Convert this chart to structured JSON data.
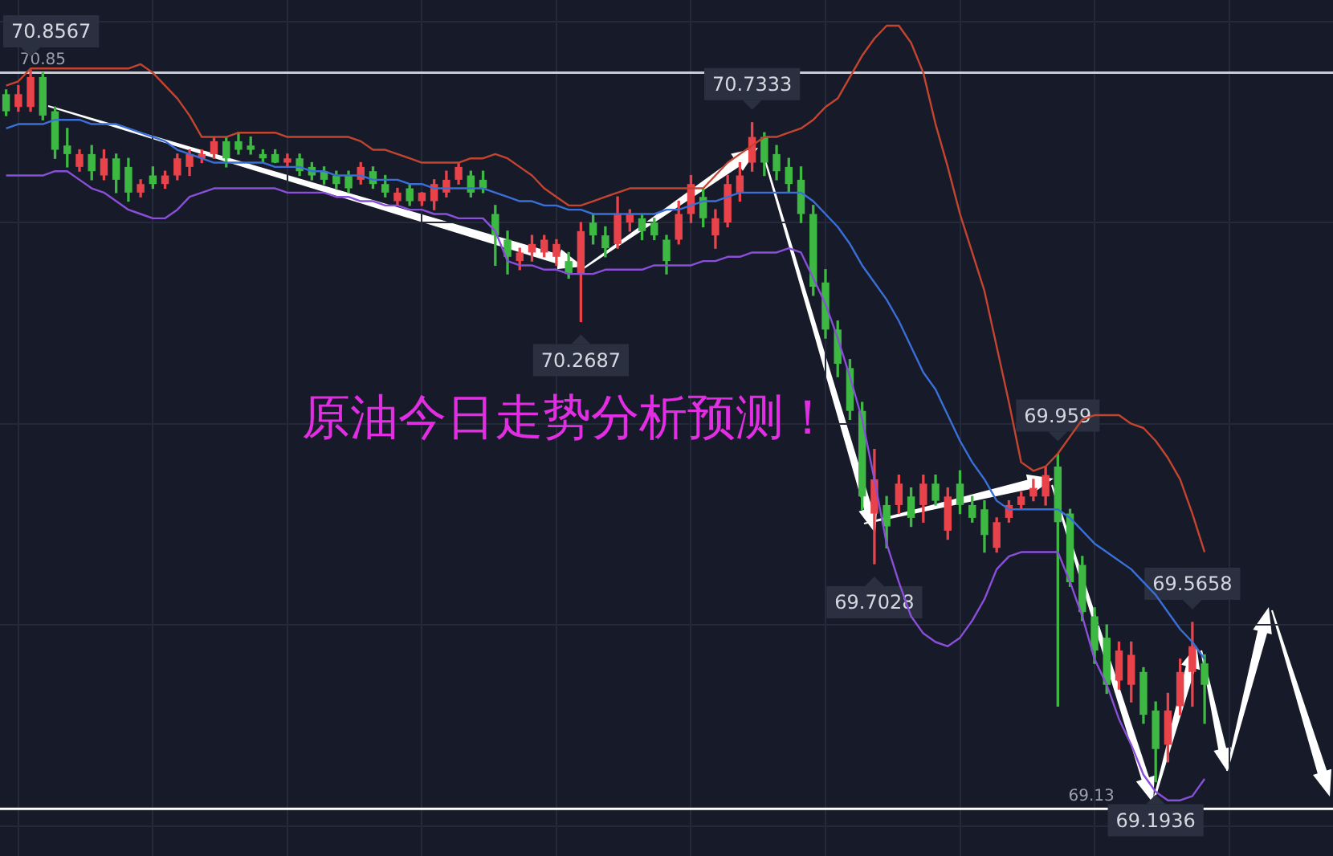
{
  "chart_data": {
    "type": "candlestick",
    "categories": [
      null,
      null,
      null,
      null,
      null,
      null,
      null,
      null,
      null,
      null,
      null,
      null,
      null,
      null,
      null,
      null,
      null,
      null,
      null,
      null,
      null,
      null,
      null,
      null,
      null,
      null,
      null,
      null,
      null,
      null,
      null,
      null,
      null,
      null,
      null,
      null,
      null,
      null,
      null,
      null,
      null,
      null,
      null,
      null,
      null,
      null,
      null,
      null,
      null,
      null,
      null,
      null,
      null,
      null,
      null,
      null,
      null,
      null,
      null,
      null,
      null,
      null,
      null,
      null,
      null,
      null,
      null,
      null,
      null,
      null,
      null,
      null,
      null,
      null,
      null,
      null,
      null,
      null,
      null,
      null,
      null,
      null,
      null,
      null,
      null,
      null,
      null,
      null,
      null,
      null,
      null,
      null,
      null,
      null,
      null,
      null,
      null,
      null,
      null,
      null,
      null,
      null,
      null,
      null,
      null,
      null,
      null,
      null,
      null
    ],
    "ohlc": [
      [
        70.8,
        70.81,
        70.75,
        70.76
      ],
      [
        70.77,
        70.82,
        70.76,
        70.8
      ],
      [
        70.77,
        70.8567,
        70.76,
        70.84
      ],
      [
        70.84,
        70.85,
        70.74,
        70.75
      ],
      [
        70.76,
        70.77,
        70.65,
        70.67
      ],
      [
        70.68,
        70.72,
        70.63,
        70.66
      ],
      [
        70.63,
        70.67,
        70.62,
        70.66
      ],
      [
        70.66,
        70.68,
        70.6,
        70.62
      ],
      [
        70.61,
        70.67,
        70.6,
        70.65
      ],
      [
        70.65,
        70.66,
        70.57,
        70.6
      ],
      [
        70.63,
        70.65,
        70.55,
        70.57
      ],
      [
        70.57,
        70.6,
        70.56,
        70.59
      ],
      [
        70.61,
        70.63,
        70.58,
        70.59
      ],
      [
        70.59,
        70.62,
        70.58,
        70.61
      ],
      [
        70.61,
        70.66,
        70.6,
        70.65
      ],
      [
        70.63,
        70.67,
        70.61,
        70.66
      ],
      [
        70.65,
        70.67,
        70.64,
        70.66
      ],
      [
        70.66,
        70.7,
        70.65,
        70.69
      ],
      [
        70.69,
        70.7,
        70.63,
        70.65
      ],
      [
        70.69,
        70.71,
        70.66,
        70.67
      ],
      [
        70.68,
        70.7,
        70.66,
        70.67
      ],
      [
        70.66,
        70.67,
        70.64,
        70.65
      ],
      [
        70.66,
        70.67,
        70.64,
        70.64
      ],
      [
        70.64,
        70.66,
        70.63,
        70.65
      ],
      [
        70.65,
        70.66,
        70.61,
        70.62
      ],
      [
        70.63,
        70.64,
        70.6,
        70.61
      ],
      [
        70.62,
        70.63,
        70.59,
        70.6
      ],
      [
        70.61,
        70.62,
        70.58,
        70.59
      ],
      [
        70.61,
        70.62,
        70.57,
        70.58
      ],
      [
        70.6,
        70.64,
        70.59,
        70.63
      ],
      [
        70.62,
        70.63,
        70.58,
        70.59
      ],
      [
        70.59,
        70.61,
        70.56,
        70.57
      ],
      [
        70.55,
        70.58,
        70.54,
        70.57
      ],
      [
        70.58,
        70.59,
        70.54,
        70.55
      ],
      [
        70.55,
        70.57,
        70.54,
        70.57
      ],
      [
        70.55,
        70.6,
        70.53,
        70.59
      ],
      [
        70.57,
        70.62,
        70.56,
        70.6
      ],
      [
        70.6,
        70.64,
        70.59,
        70.63
      ],
      [
        70.61,
        70.62,
        70.56,
        70.57
      ],
      [
        70.6,
        70.62,
        70.57,
        70.58
      ],
      [
        70.52,
        70.54,
        70.4,
        70.47
      ],
      [
        70.46,
        70.48,
        70.38,
        70.42
      ],
      [
        70.41,
        70.44,
        70.39,
        70.43
      ],
      [
        70.43,
        70.47,
        70.41,
        70.45
      ],
      [
        70.43,
        70.47,
        70.42,
        70.46
      ],
      [
        70.42,
        70.46,
        70.4,
        70.45
      ],
      [
        70.41,
        70.43,
        70.37,
        70.38
      ],
      [
        70.38,
        70.5,
        70.2687,
        70.48
      ],
      [
        70.5,
        70.52,
        70.45,
        70.47
      ],
      [
        70.47,
        70.49,
        70.42,
        70.44
      ],
      [
        70.45,
        70.56,
        70.44,
        70.52
      ],
      [
        70.5,
        70.53,
        70.48,
        70.52
      ],
      [
        70.51,
        70.52,
        70.46,
        70.48
      ],
      [
        70.5,
        70.51,
        70.46,
        70.47
      ],
      [
        70.46,
        70.47,
        70.38,
        70.41
      ],
      [
        70.46,
        70.55,
        70.45,
        70.52
      ],
      [
        70.52,
        70.61,
        70.5,
        70.59
      ],
      [
        70.56,
        70.58,
        70.49,
        70.51
      ],
      [
        70.47,
        70.53,
        70.44,
        70.51
      ],
      [
        70.5,
        70.61,
        70.49,
        70.59
      ],
      [
        70.57,
        70.64,
        70.55,
        70.61
      ],
      [
        70.64,
        70.7333,
        70.62,
        70.7
      ],
      [
        70.7,
        70.71,
        70.61,
        70.64
      ],
      [
        70.66,
        70.68,
        70.6,
        70.62
      ],
      [
        70.63,
        70.65,
        70.57,
        70.59
      ],
      [
        70.6,
        70.63,
        70.5,
        70.52
      ],
      [
        70.52,
        70.54,
        70.33,
        70.35
      ],
      [
        70.36,
        70.39,
        70.23,
        70.25
      ],
      [
        70.25,
        70.27,
        70.14,
        70.17
      ],
      [
        70.16,
        70.18,
        70.04,
        70.06
      ],
      [
        70.06,
        70.08,
        69.83,
        69.86
      ],
      [
        69.82,
        69.97,
        69.7028,
        69.9
      ],
      [
        69.84,
        69.86,
        69.74,
        69.79
      ],
      [
        69.84,
        69.91,
        69.82,
        69.89
      ],
      [
        69.86,
        69.88,
        69.79,
        69.81
      ],
      [
        69.84,
        69.91,
        69.8,
        69.89
      ],
      [
        69.89,
        69.91,
        69.84,
        69.85
      ],
      [
        69.78,
        69.88,
        69.76,
        69.86
      ],
      [
        69.89,
        69.92,
        69.82,
        69.84
      ],
      [
        69.84,
        69.86,
        69.8,
        69.81
      ],
      [
        69.83,
        69.85,
        69.73,
        69.77
      ],
      [
        69.74,
        69.81,
        69.73,
        69.8
      ],
      [
        69.81,
        69.85,
        69.8,
        69.84
      ],
      [
        69.84,
        69.87,
        69.83,
        69.86
      ],
      [
        69.86,
        69.9,
        69.85,
        69.88
      ],
      [
        69.86,
        69.93,
        69.84,
        69.91
      ],
      [
        69.93,
        69.959,
        69.37,
        69.8
      ],
      [
        69.82,
        69.83,
        69.65,
        69.66
      ],
      [
        69.7,
        69.72,
        69.57,
        69.59
      ],
      [
        69.58,
        69.6,
        69.47,
        69.5
      ],
      [
        69.53,
        69.56,
        69.4,
        69.42
      ],
      [
        69.43,
        69.52,
        69.41,
        69.5
      ],
      [
        69.42,
        69.52,
        69.38,
        69.49
      ],
      [
        69.45,
        69.46,
        69.33,
        69.35
      ],
      [
        69.36,
        69.38,
        69.1936,
        69.27
      ],
      [
        69.28,
        69.4,
        69.24,
        69.36
      ],
      [
        69.37,
        69.48,
        69.35,
        69.45
      ],
      [
        69.45,
        69.5658,
        69.37,
        69.51
      ],
      [
        69.47,
        69.49,
        69.33,
        69.42
      ],
      null,
      null,
      null,
      null,
      null,
      null,
      null,
      null,
      null,
      null
    ],
    "colors": [
      "#3db843",
      "#e8424a",
      "#e8424a",
      "#3db843",
      "#3db843",
      "#3db843",
      "#e8424a",
      "#3db843",
      "#e8424a",
      "#3db843",
      "#3db843",
      "#e8424a",
      "#3db843",
      "#e8424a",
      "#e8424a",
      "#e8424a",
      "#e8424a",
      "#e8424a",
      "#3db843",
      "#3db843",
      "#3db843",
      "#3db843",
      "#3db843",
      "#e8424a",
      "#3db843",
      "#3db843",
      "#3db843",
      "#3db843",
      "#3db843",
      "#e8424a",
      "#3db843",
      "#3db843",
      "#e8424a",
      "#3db843",
      "#e8424a",
      "#e8424a",
      "#e8424a",
      "#e8424a",
      "#3db843",
      "#3db843",
      "#3db843",
      "#3db843",
      "#e8424a",
      "#e8424a",
      "#e8424a",
      "#e8424a",
      "#3db843",
      "#e8424a",
      "#3db843",
      "#3db843",
      "#e8424a",
      "#e8424a",
      "#3db843",
      "#3db843",
      "#3db843",
      "#e8424a",
      "#e8424a",
      "#3db843",
      "#e8424a",
      "#e8424a",
      "#e8424a",
      "#e8424a",
      "#3db843",
      "#3db843",
      "#3db843",
      "#3db843",
      "#3db843",
      "#3db843",
      "#3db843",
      "#3db843",
      "#3db843",
      "#e8424a",
      "#3db843",
      "#e8424a",
      "#3db843",
      "#e8424a",
      "#3db843",
      "#e8424a",
      "#3db843",
      "#3db843",
      "#3db843",
      "#e8424a",
      "#e8424a",
      "#e8424a",
      "#e8424a",
      "#e8424a",
      "#3db843",
      "#3db843",
      "#3db843",
      "#3db843",
      "#3db843",
      "#e8424a",
      "#e8424a",
      "#3db843",
      "#3db843",
      "#e8424a",
      "#e8424a",
      "#e8424a",
      "#3db843",
      null,
      null,
      null,
      null,
      null,
      null,
      null,
      null,
      null,
      null
    ],
    "series": [
      {
        "type": "line",
        "color": "#c4452f",
        "values": [
          70.82,
          70.83,
          70.86,
          70.86,
          70.86,
          70.86,
          70.86,
          70.86,
          70.86,
          70.86,
          70.86,
          70.87,
          70.85,
          70.82,
          70.79,
          70.75,
          70.7,
          70.7,
          70.7,
          70.71,
          70.71,
          70.71,
          70.71,
          70.7,
          70.7,
          70.7,
          70.7,
          70.7,
          70.7,
          70.69,
          70.67,
          70.67,
          70.66,
          70.65,
          70.64,
          70.64,
          70.64,
          70.64,
          70.65,
          70.65,
          70.66,
          70.65,
          70.63,
          70.61,
          70.58,
          70.56,
          70.54,
          70.54,
          70.55,
          70.56,
          70.57,
          70.58,
          70.58,
          70.58,
          70.58,
          70.58,
          70.58,
          70.58,
          70.61,
          70.64,
          70.66,
          70.68,
          70.7,
          70.7,
          70.71,
          70.72,
          70.74,
          70.77,
          70.79,
          70.84,
          70.89,
          70.93,
          70.96,
          70.96,
          70.92,
          70.85,
          70.73,
          70.63,
          70.52,
          70.43,
          70.34,
          70.21,
          70.08,
          69.94,
          69.92,
          69.93,
          69.96,
          70.0,
          70.04,
          70.05,
          70.05,
          70.05,
          70.03,
          70.02,
          69.99,
          69.95,
          69.9,
          69.82,
          69.73,
          null,
          null,
          null,
          null,
          null,
          null,
          null,
          null,
          null,
          null
        ]
      },
      {
        "type": "line",
        "color": "#3a6fd8",
        "values": [
          70.72,
          70.73,
          70.73,
          70.73,
          70.74,
          70.74,
          70.74,
          70.73,
          70.73,
          70.73,
          70.72,
          70.71,
          70.7,
          70.69,
          70.67,
          70.66,
          70.65,
          70.64,
          70.64,
          70.64,
          70.64,
          70.64,
          70.63,
          70.63,
          70.63,
          70.62,
          70.62,
          70.61,
          70.61,
          70.61,
          70.6,
          70.6,
          70.6,
          70.59,
          70.59,
          70.58,
          70.58,
          70.58,
          70.58,
          70.58,
          70.57,
          70.56,
          70.55,
          70.55,
          70.54,
          70.54,
          70.53,
          70.53,
          70.52,
          70.52,
          70.52,
          70.52,
          70.52,
          70.52,
          70.53,
          70.53,
          70.54,
          70.55,
          70.55,
          70.56,
          70.57,
          70.57,
          70.57,
          70.57,
          70.57,
          70.57,
          70.55,
          70.52,
          70.49,
          70.45,
          70.4,
          70.36,
          70.32,
          70.27,
          70.21,
          70.15,
          70.11,
          70.05,
          69.99,
          69.94,
          69.9,
          69.85,
          69.83,
          69.83,
          69.83,
          69.83,
          69.83,
          69.81,
          69.78,
          69.75,
          69.73,
          69.71,
          69.69,
          69.66,
          69.63,
          69.59,
          69.55,
          69.52,
          69.48,
          null,
          null,
          null,
          null,
          null,
          null,
          null,
          null,
          null,
          null
        ]
      },
      {
        "type": "line",
        "color": "#8a4fd8",
        "values": [
          70.61,
          70.61,
          70.61,
          70.61,
          70.62,
          70.62,
          70.6,
          70.58,
          70.57,
          70.55,
          70.53,
          70.52,
          70.51,
          70.51,
          70.53,
          70.56,
          70.57,
          70.58,
          70.58,
          70.58,
          70.58,
          70.58,
          70.58,
          70.57,
          70.57,
          70.57,
          70.57,
          70.56,
          70.56,
          70.55,
          70.55,
          70.54,
          70.54,
          70.53,
          70.53,
          70.52,
          70.52,
          70.51,
          70.51,
          70.51,
          70.48,
          70.41,
          70.4,
          70.4,
          70.39,
          70.39,
          70.38,
          70.38,
          70.38,
          70.39,
          70.39,
          70.39,
          70.39,
          70.4,
          70.4,
          70.4,
          70.4,
          70.41,
          70.41,
          70.42,
          70.42,
          70.43,
          70.43,
          70.43,
          70.44,
          70.43,
          70.37,
          70.31,
          70.23,
          70.14,
          70.04,
          69.9,
          69.75,
          69.66,
          69.58,
          69.54,
          69.52,
          69.51,
          69.53,
          69.57,
          69.62,
          69.69,
          69.72,
          69.73,
          69.73,
          69.73,
          69.73,
          69.66,
          69.58,
          69.48,
          69.42,
          69.34,
          69.28,
          69.21,
          69.17,
          69.15,
          69.15,
          69.16,
          69.2,
          null,
          null,
          null,
          null,
          null,
          null,
          null,
          null,
          null,
          null
        ]
      }
    ],
    "ylim": [
      69.02,
      71.02
    ],
    "yticks": [
      {
        "value": 70.97,
        "label": null
      },
      {
        "value": 70.5,
        "label": null
      },
      {
        "value": 70.03,
        "label": null
      },
      {
        "value": 69.56,
        "label": null
      },
      {
        "value": 69.09,
        "label": null
      }
    ],
    "grid": true,
    "legend": false,
    "tick_labels": false,
    "ref_lines": [
      {
        "axis": "y",
        "value": 70.85,
        "label": "70.85",
        "color": "#c9ccd3"
      },
      {
        "axis": "y",
        "value": 69.13,
        "label": "69.13",
        "color": "#ffffff"
      }
    ],
    "annotations": [
      "原油今日走势分析预测！",
      {
        "text": "70.8567",
        "y": 70.8567
      },
      {
        "text": "70.7333",
        "y": 70.7333
      },
      {
        "text": "70.2687",
        "y": 70.2687
      },
      {
        "text": "69.7028",
        "y": 69.7028
      },
      {
        "text": "69.959",
        "y": 69.959
      },
      {
        "text": "69.5658",
        "y": 69.5658
      },
      {
        "text": "69.1936",
        "y": 69.1936
      }
    ]
  }
}
